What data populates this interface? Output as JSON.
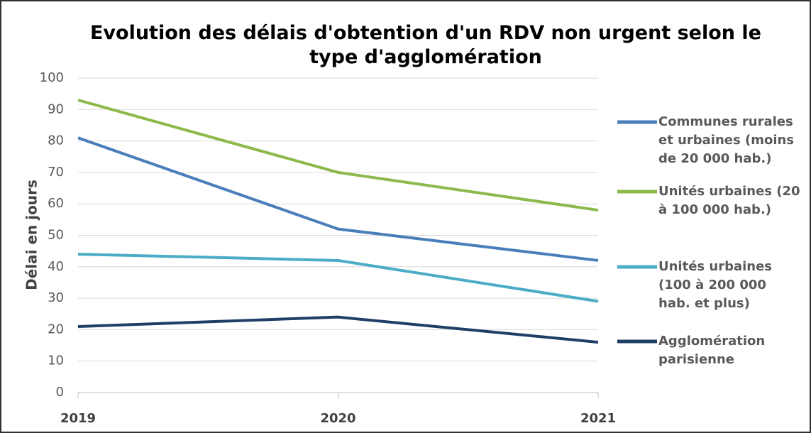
{
  "chart_data": {
    "type": "line",
    "title": "Evolution des délais d'obtention d'un RDV non urgent selon le type d'agglomération",
    "y_label": "Délai en jours",
    "categories": [
      "2019",
      "2020",
      "2021"
    ],
    "series": [
      {
        "name": "Communes rurales et urbaines (moins de 20 000 hab.)",
        "color": "#4a7ebb",
        "values": [
          81,
          52,
          42
        ]
      },
      {
        "name": "Unités urbaines (20 à 100 000 hab.)",
        "color": "#8db94c",
        "values": [
          93,
          70,
          58
        ]
      },
      {
        "name": "Unités urbaines (100 à 200 000 hab. et plus)",
        "color": "#4bacc6",
        "values": [
          44,
          42,
          29
        ]
      },
      {
        "name": "Agglomération parisienne",
        "color": "#1f3f66",
        "values": [
          21,
          24,
          16
        ]
      }
    ],
    "ylim": [
      0,
      100
    ],
    "yticks": [
      0,
      10,
      20,
      30,
      40,
      50,
      60,
      70,
      80,
      90,
      100
    ],
    "grid": true,
    "legend": "right"
  }
}
